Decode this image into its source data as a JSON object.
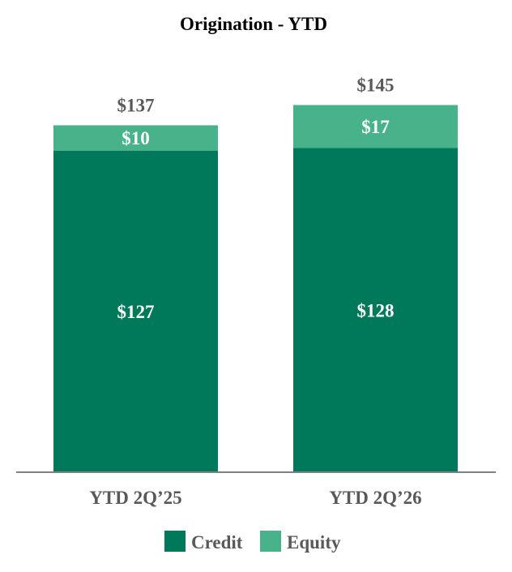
{
  "chart_data": {
    "type": "bar",
    "stacked": true,
    "title": "Origination - YTD",
    "categories": [
      "YTD 2Q’25",
      "YTD 2Q’26"
    ],
    "series": [
      {
        "name": "Credit",
        "values": [
          127,
          128
        ],
        "labels": [
          "$127",
          "$128"
        ],
        "color": "#00785A"
      },
      {
        "name": "Equity",
        "values": [
          10,
          17
        ],
        "labels": [
          "$10",
          "$17"
        ],
        "color": "#48B38A"
      }
    ],
    "totals": [
      137,
      145
    ],
    "total_labels": [
      "$137",
      "$145"
    ],
    "ylim": [
      0,
      145
    ],
    "grid": false,
    "legend": "bottom-center"
  }
}
